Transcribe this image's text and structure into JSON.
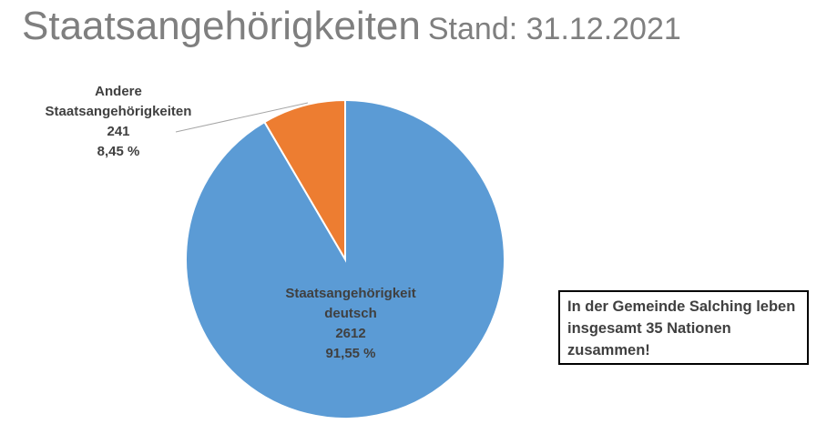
{
  "chart_data": {
    "type": "pie",
    "title": "Staatsangehörigkeiten",
    "subtitle": "Stand: 31.12.2021",
    "categories": [
      "Staatsangehörigkeit deutsch",
      "Andere Staatsangehörigkeiten"
    ],
    "values": [
      2612,
      241
    ],
    "percentages": [
      91.55,
      8.45
    ],
    "percentage_labels": [
      "91,55 %",
      "8,45 %"
    ],
    "colors": [
      "#5b9bd5",
      "#ed7d31"
    ],
    "annotation": "In der Gemeinde Salching leben insgesamt 35 Nationen zusammen!"
  }
}
